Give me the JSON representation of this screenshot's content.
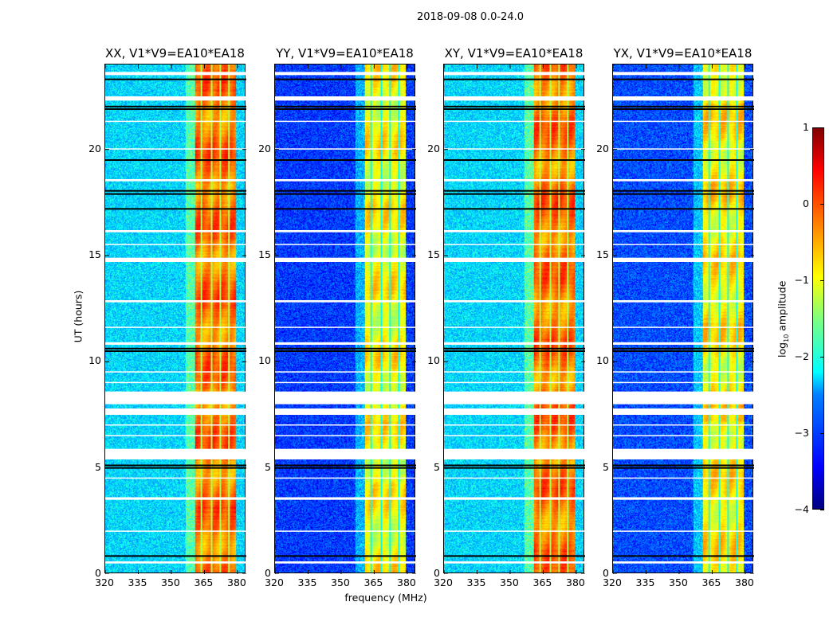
{
  "chart_data": {
    "type": "heatmap",
    "title": "2018-09-08 0.0-24.0",
    "xlabel": "frequency (MHz)",
    "ylabel": "UT (hours)",
    "xlim": [
      320,
      384
    ],
    "ylim": [
      0,
      24
    ],
    "xticks": [
      "320",
      "335",
      "350",
      "365",
      "380"
    ],
    "xtick_values": [
      320,
      335,
      350,
      365,
      380
    ],
    "yticks": [
      "0",
      "5",
      "10",
      "15",
      "20"
    ],
    "ytick_values": [
      0,
      5,
      10,
      15,
      20
    ],
    "colorbar": {
      "label_main": "log",
      "label_sub": "10",
      "label_tail": " amplitude",
      "range": [
        -4,
        1
      ],
      "ticks": [
        "−4",
        "−3",
        "−2",
        "−1",
        "0",
        "1"
      ],
      "tick_values": [
        -4,
        -3,
        -2,
        -1,
        0,
        1
      ],
      "colormap": "jet"
    },
    "band_mhz": [
      361,
      380
    ],
    "band_gaps_mhz": [
      364,
      368.5,
      372.5,
      376.5
    ],
    "panels": [
      {
        "title": "XX, V1*V9=EA10*EA18",
        "background_level": -2.3,
        "band_level": -0.2
      },
      {
        "title": "YY, V1*V9=EA10*EA18",
        "background_level": -3.1,
        "band_level": -0.9
      },
      {
        "title": "XY, V1*V9=EA10*EA18",
        "background_level": -2.3,
        "band_level": -0.2
      },
      {
        "title": "YX, V1*V9=EA10*EA18",
        "background_level": -3.0,
        "band_level": -0.8
      }
    ],
    "flagged_hours": [
      [
        0.5,
        0.6
      ],
      [
        2.0,
        2.05
      ],
      [
        3.5,
        3.62
      ],
      [
        4.5,
        4.55
      ],
      [
        5.4,
        5.9
      ],
      [
        6.5,
        6.55
      ],
      [
        7.0,
        7.05
      ],
      [
        7.5,
        7.8
      ],
      [
        8.0,
        8.6
      ],
      [
        9.0,
        9.05
      ],
      [
        9.5,
        9.55
      ],
      [
        10.8,
        10.92
      ],
      [
        11.6,
        11.65
      ],
      [
        12.8,
        12.9
      ],
      [
        14.7,
        14.9
      ],
      [
        15.5,
        15.55
      ],
      [
        16.1,
        16.2
      ],
      [
        18.5,
        18.6
      ],
      [
        20.0,
        20.05
      ],
      [
        21.3,
        21.35
      ],
      [
        22.3,
        22.5
      ],
      [
        23.5,
        23.65
      ]
    ],
    "dark_rows_hours": [
      0.85,
      5.0,
      5.12,
      10.5,
      10.62,
      17.2,
      17.9,
      18.05,
      19.5,
      21.9,
      22.02,
      23.3
    ]
  }
}
